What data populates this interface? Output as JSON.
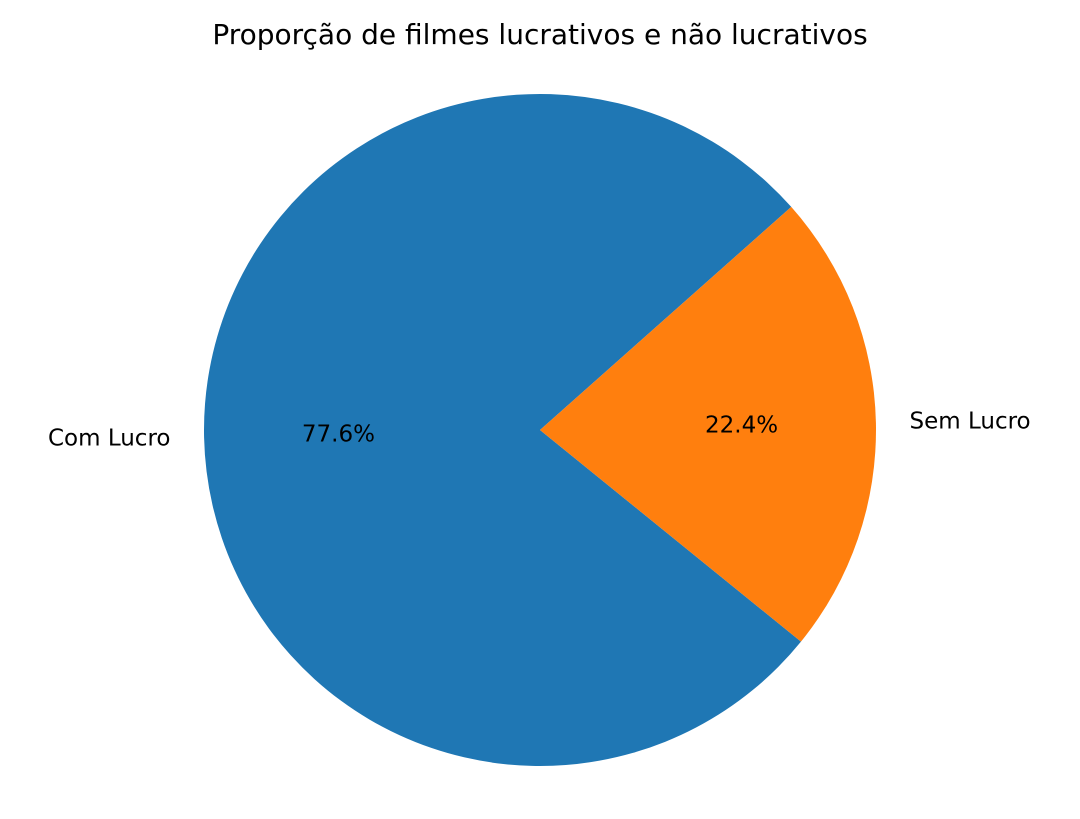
{
  "chart_data": {
    "type": "pie",
    "title": "Proporção de filmes lucrativos e não lucrativos",
    "categories": [
      "Com Lucro",
      "Sem Lucro"
    ],
    "values": [
      77.6,
      22.4
    ],
    "value_labels": [
      "77.6%",
      "22.4%"
    ],
    "colors": [
      "#1f77b4",
      "#ff7f0e"
    ],
    "legend": "none"
  }
}
